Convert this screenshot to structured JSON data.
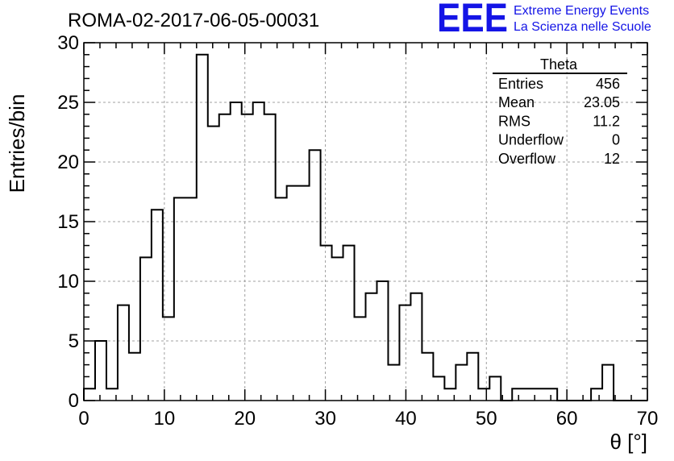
{
  "header": {
    "run_title": "ROMA-02-2017-06-05-00031",
    "logo_text": "EEE",
    "logo_line1": "Extreme Energy Events",
    "logo_line2": "La Scienza nelle Scuole"
  },
  "stats_box": {
    "title": "Theta",
    "rows": [
      {
        "label": "Entries",
        "value": "456"
      },
      {
        "label": "Mean",
        "value": "23.05"
      },
      {
        "label": "RMS",
        "value": "11.2"
      },
      {
        "label": "Underflow",
        "value": "0"
      },
      {
        "label": "Overflow",
        "value": "12"
      }
    ]
  },
  "colors": {
    "histogram_line": "#000000",
    "grid": "#a0a0a0",
    "logo": "#1414e6"
  },
  "chart_data": {
    "type": "bar",
    "title": "ROMA-02-2017-06-05-00031",
    "xlabel": "θ [°]",
    "ylabel": "Entries/bin",
    "xlim": [
      0,
      70
    ],
    "ylim": [
      0,
      30
    ],
    "bin_width": 1.4,
    "bin_edges_start": 0,
    "values": [
      1,
      5,
      1,
      8,
      4,
      12,
      16,
      7,
      17,
      17,
      29,
      23,
      24,
      25,
      24,
      25,
      24,
      17,
      18,
      18,
      21,
      13,
      12,
      13,
      7,
      9,
      10,
      3,
      8,
      9,
      4,
      2,
      1,
      3,
      4,
      1,
      2,
      0,
      1,
      1,
      1,
      1,
      0,
      0,
      0,
      1,
      3,
      0,
      0,
      0
    ],
    "xticks": [
      0,
      10,
      20,
      30,
      40,
      50,
      60,
      70
    ],
    "yticks": [
      0,
      5,
      10,
      15,
      20,
      25,
      30
    ],
    "grid": true,
    "legend": "top-right stats box"
  }
}
